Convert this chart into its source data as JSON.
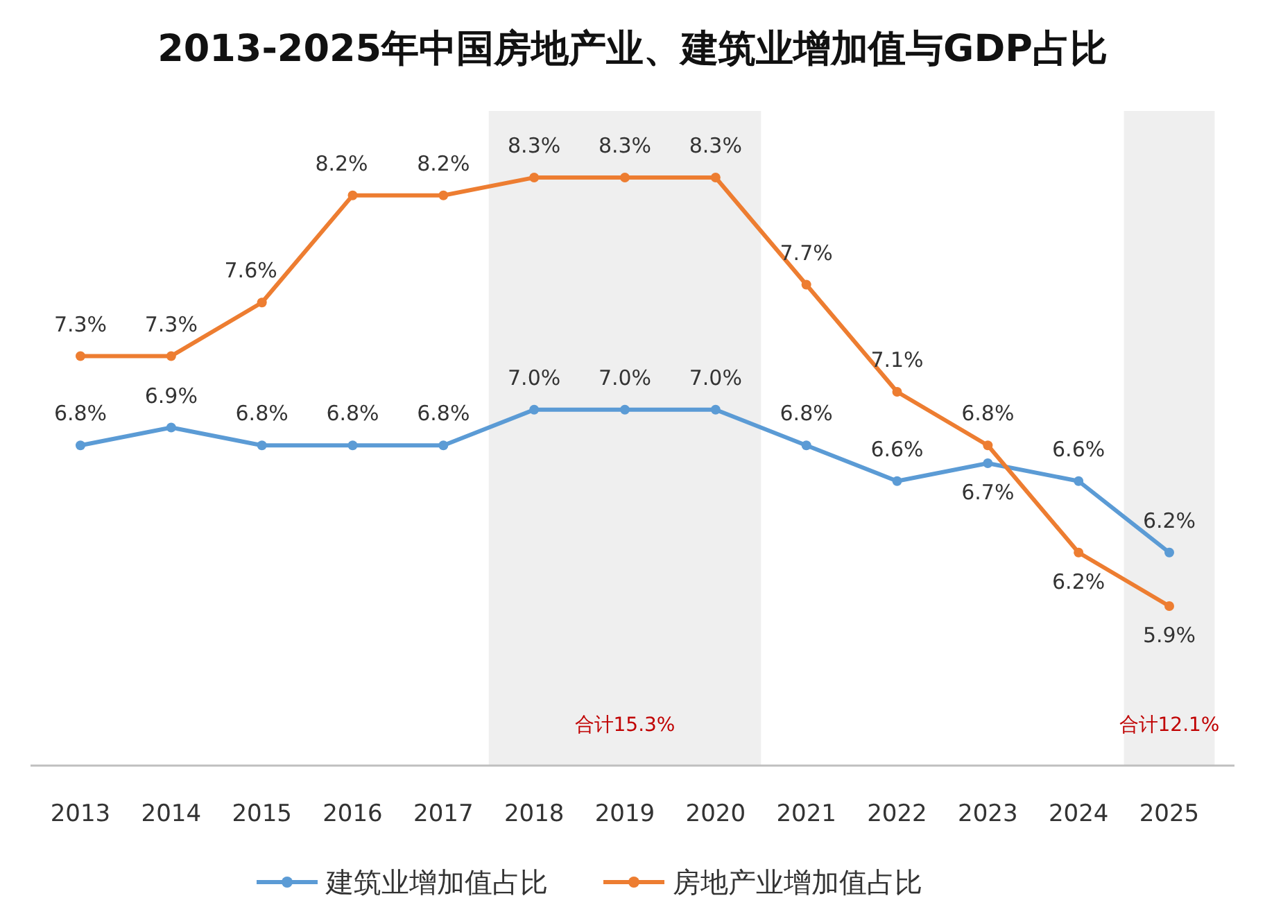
{
  "chart_data": {
    "type": "line",
    "title": "2013-2025年中国房地产业、建筑业增加值与GDP占比",
    "categories": [
      "2013",
      "2014",
      "2015",
      "2016",
      "2017",
      "2018",
      "2019",
      "2020",
      "2021",
      "2022",
      "2023",
      "2024",
      "2025"
    ],
    "series": [
      {
        "name": "建筑业增加值占比",
        "color": "#5b9bd5",
        "values": [
          6.8,
          6.9,
          6.8,
          6.8,
          6.8,
          7.0,
          7.0,
          7.0,
          6.8,
          6.6,
          6.7,
          6.6,
          6.2
        ],
        "value_labels": [
          "6.8%",
          "6.9%",
          "6.8%",
          "6.8%",
          "6.8%",
          "7.0%",
          "7.0%",
          "7.0%",
          "6.8%",
          "6.6%",
          "6.7%",
          "6.6%",
          "6.2%"
        ]
      },
      {
        "name": "房地产业增加值占比",
        "color": "#ed7d31",
        "values": [
          7.3,
          7.3,
          7.6,
          8.2,
          8.2,
          8.3,
          8.3,
          8.3,
          7.7,
          7.1,
          6.8,
          6.2,
          5.9
        ],
        "value_labels": [
          "7.3%",
          "7.3%",
          "7.6%",
          "8.2%",
          "8.2%",
          "8.3%",
          "8.3%",
          "8.3%",
          "7.7%",
          "7.1%",
          "6.8%",
          "6.2%",
          "5.9%"
        ]
      }
    ],
    "bands": [
      {
        "axis": "x",
        "from": "2018",
        "to": "2020",
        "label": "合计15.3%",
        "color": "#efefef"
      },
      {
        "axis": "x",
        "from": "2025",
        "to": "2025",
        "label": "合计12.1%",
        "color": "#efefef"
      }
    ],
    "marker": "circle",
    "legend": "bottom"
  }
}
